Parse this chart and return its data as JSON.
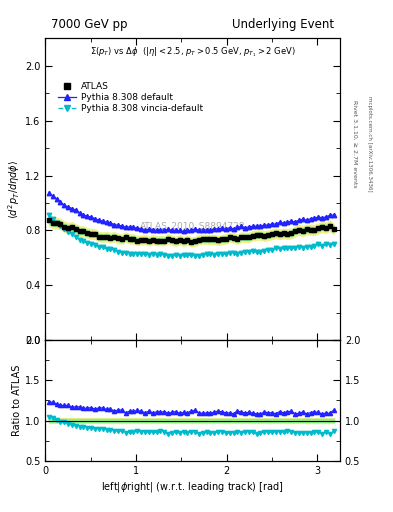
{
  "title_left": "7000 GeV pp",
  "title_right": "Underlying Event",
  "annotation": "ATLAS_2010_S8894728",
  "ylabel_main": "$\\langle d^2 p_T / d\\eta d\\phi \\rangle$",
  "ylabel_ratio": "Ratio to ATLAS",
  "xlabel": "left|$\\phi$right| (w.r.t. leading track) [rad]",
  "right_label_top": "Rivet 3.1.10, ≥ 2.7M events",
  "right_label_bot": "mcplots.cern.ch [arXiv:1306.3436]",
  "ylim_main": [
    0.0,
    2.2
  ],
  "ylim_ratio": [
    0.5,
    2.0
  ],
  "xlim": [
    0.0,
    3.25
  ],
  "legend_labels": [
    "ATLAS",
    "Pythia 8.308 default",
    "Pythia 8.308 vincia-default"
  ],
  "atlas_color": "black",
  "pythia_default_color": "#2222ff",
  "pythia_vincia_color": "#00bbcc",
  "band_color_yellow": "#eeee88",
  "band_color_green": "#88ee88"
}
